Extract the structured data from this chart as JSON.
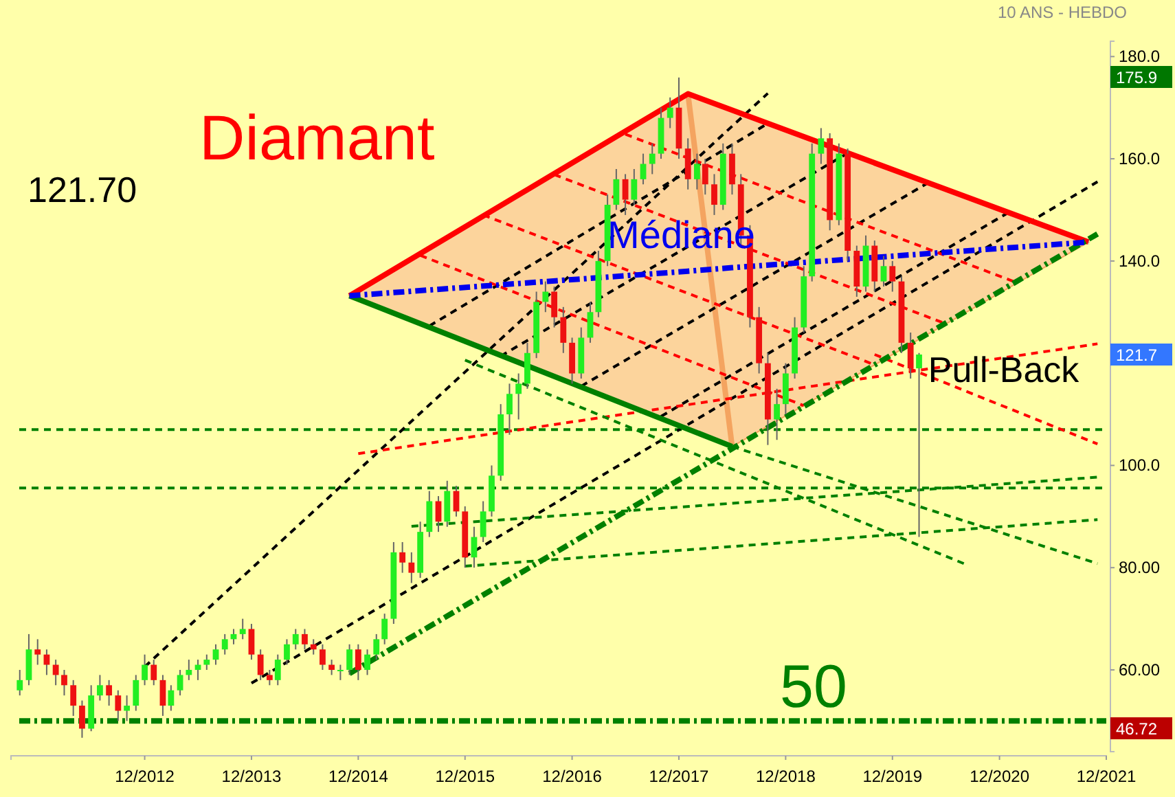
{
  "chart_data": {
    "type": "candlestick",
    "title": "Diamant",
    "subtitle": "10 ANS - HEBDO",
    "xlim": [
      "2011-09",
      "2021-12"
    ],
    "xticks": [
      {
        "value": "2012-12",
        "label": "12/2012"
      },
      {
        "value": "2013-12",
        "label": "12/2013"
      },
      {
        "value": "2014-12",
        "label": "12/2014"
      },
      {
        "value": "2015-12",
        "label": "12/2015"
      },
      {
        "value": "2016-12",
        "label": "12/2016"
      },
      {
        "value": "2017-12",
        "label": "12/2017"
      },
      {
        "value": "2018-12",
        "label": "12/2018"
      },
      {
        "value": "2019-12",
        "label": "12/2019"
      },
      {
        "value": "2020-12",
        "label": "12/2020"
      },
      {
        "value": "2021-12",
        "label": "12/2021"
      }
    ],
    "ylim": [
      44,
      183
    ],
    "yticks": [
      {
        "value": 60,
        "label": "60.00"
      },
      {
        "value": 80,
        "label": "80.00"
      },
      {
        "value": 100,
        "label": "100.0"
      },
      {
        "value": 140,
        "label": "140.0"
      },
      {
        "value": 160,
        "label": "160.0"
      },
      {
        "value": 180,
        "label": "180.0"
      }
    ],
    "grid": false,
    "ref_lines": [
      {
        "axis": "y",
        "value": 50,
        "label": "50",
        "color": "#008000",
        "line_style": "dashed"
      },
      {
        "axis": "y",
        "value": 107,
        "label": null,
        "color": "#008000",
        "line_style": "dotted"
      },
      {
        "axis": "y",
        "value": 95.6,
        "label": null,
        "color": "#008000",
        "line_style": "dotted"
      }
    ],
    "annotations": [
      "121.70",
      {
        "text": "Médiane",
        "x": "2017-04",
        "y": 142.5
      },
      {
        "text": "Pull-Back",
        "x": "2020-04",
        "y": 116.3
      },
      "175.9",
      "121.7",
      "46.72"
    ],
    "series": [
      {
        "type": "line",
        "color": "#0000ee",
        "line_style": "dashed",
        "x": [
          "2014-11",
          "2018-01",
          "2018-06",
          "2021-10"
        ],
        "values": [
          133.2,
          138,
          138.7,
          143.7
        ],
        "lower": [
          133.2,
          107.2,
          103.7,
          143.7
        ],
        "upper": [
          133.2,
          172.7,
          169.4,
          143.7
        ]
      },
      {
        "type": "line",
        "color": "#f4a460",
        "line_style": "solid",
        "x": [
          "2018-01",
          "2018-06"
        ],
        "values": [
          172.7,
          103.7
        ]
      },
      {
        "type": "line",
        "color": "#000000",
        "line_style": "dotted",
        "x": [
          "2012-12",
          "2018-10"
        ],
        "values": [
          60.6,
          172.8
        ]
      },
      {
        "type": "line",
        "color": "#000000",
        "line_style": "dotted",
        "x": [
          "2013-12",
          "2021-11"
        ],
        "values": [
          57.4,
          155.5
        ]
      },
      {
        "type": "line",
        "color": "#000000",
        "line_style": "dotted",
        "x": [
          "2015-08",
          "2018-10"
        ],
        "values": [
          127.3,
          166.9
        ]
      },
      {
        "type": "line",
        "color": "#000000",
        "line_style": "dotted",
        "x": [
          "2016-04",
          "2019-07"
        ],
        "values": [
          121.4,
          161.1
        ]
      },
      {
        "type": "line",
        "color": "#000000",
        "line_style": "dotted",
        "x": [
          "2017-01",
          "2020-04"
        ],
        "values": [
          115.5,
          155.3
        ]
      },
      {
        "type": "line",
        "color": "#000000",
        "line_style": "dotted",
        "x": [
          "2017-10",
          "2021-01"
        ],
        "values": [
          109.6,
          149.5
        ]
      },
      {
        "type": "line",
        "color": "#ff0000",
        "line_style": "dotted",
        "x": [
          "2015-07",
          "2019-02"
        ],
        "values": [
          141.1,
          111.7
        ]
      },
      {
        "type": "line",
        "color": "#ff0000",
        "line_style": "dotted",
        "x": [
          "2016-02",
          "2019-10"
        ],
        "values": [
          149,
          119.7
        ]
      },
      {
        "type": "line",
        "color": "#ff0000",
        "line_style": "dotted",
        "x": [
          "2016-10",
          "2020-06"
        ],
        "values": [
          156.9,
          127.7
        ]
      },
      {
        "type": "line",
        "color": "#ff0000",
        "line_style": "dotted",
        "x": [
          "2017-06",
          "2021-02"
        ],
        "values": [
          164.8,
          135.7
        ]
      },
      {
        "type": "line",
        "color": "#ff0000",
        "line_style": "dotted",
        "x": [
          "2014-12",
          "2021-11"
        ],
        "values": [
          102.3,
          123.8
        ]
      },
      {
        "type": "line",
        "color": "#ff0000",
        "line_style": "dotted",
        "x": [
          "2019-10",
          "2021-11"
        ],
        "values": [
          121.7,
          104.2
        ]
      },
      {
        "type": "line",
        "color": "#008000",
        "line_style": "dotted",
        "x": [
          "2015-12",
          "2020-08"
        ],
        "values": [
          120.6,
          80.8
        ]
      },
      {
        "type": "line",
        "color": "#008000",
        "line_style": "dotted",
        "x": [
          "2018-06",
          "2021-11"
        ],
        "values": [
          103.7,
          80.8
        ]
      },
      {
        "type": "line",
        "color": "#008000",
        "line_style": "dotted",
        "x": [
          "2015-06",
          "2021-11"
        ],
        "values": [
          88.1,
          97.7
        ]
      },
      {
        "type": "line",
        "color": "#008000",
        "line_style": "dotted",
        "x": [
          "2015-12",
          "2021-11"
        ],
        "values": [
          80.3,
          89.4
        ]
      },
      {
        "type": "line",
        "color": "#ff0000",
        "line_style": "solid",
        "x": [
          "2014-11",
          "2018-01",
          "2021-10"
        ],
        "values": [
          133.2,
          172.7,
          143.7
        ]
      },
      {
        "type": "line",
        "color": "#008000",
        "line_style": "solid",
        "x": [
          "2014-11",
          "2018-06"
        ],
        "values": [
          133.2,
          103.7
        ]
      },
      {
        "type": "line",
        "color": "#008000",
        "line_style": "dashed",
        "x": [
          "2014-11",
          "2021-11"
        ],
        "values": [
          59.3,
          145.3
        ]
      },
      {
        "x": [
          "2011-10",
          "2011-11",
          "2011-12",
          "2012-01",
          "2012-02",
          "2012-03",
          "2012-04",
          "2012-05",
          "2012-06",
          "2012-07",
          "2012-08",
          "2012-09",
          "2012-10",
          "2012-11",
          "2012-12",
          "2013-01",
          "2013-02",
          "2013-03",
          "2013-04",
          "2013-05",
          "2013-06",
          "2013-07",
          "2013-08",
          "2013-09",
          "2013-10",
          "2013-11",
          "2013-12",
          "2014-01",
          "2014-02",
          "2014-03",
          "2014-04",
          "2014-05",
          "2014-06",
          "2014-07",
          "2014-08",
          "2014-09",
          "2014-10",
          "2014-11",
          "2014-12",
          "2015-01",
          "2015-02",
          "2015-03",
          "2015-04",
          "2015-05",
          "2015-06",
          "2015-07",
          "2015-08",
          "2015-09",
          "2015-10",
          "2015-11",
          "2015-12",
          "2016-01",
          "2016-02",
          "2016-03",
          "2016-04",
          "2016-05",
          "2016-06",
          "2016-07",
          "2016-08",
          "2016-09",
          "2016-10",
          "2016-11",
          "2016-12",
          "2017-01",
          "2017-02",
          "2017-03",
          "2017-04",
          "2017-05",
          "2017-06",
          "2017-07",
          "2017-08",
          "2017-09",
          "2017-10",
          "2017-11",
          "2017-12",
          "2018-01",
          "2018-02",
          "2018-03",
          "2018-04",
          "2018-05",
          "2018-06",
          "2018-07",
          "2018-08",
          "2018-09",
          "2018-10",
          "2018-11",
          "2018-12",
          "2019-01",
          "2019-02",
          "2019-03",
          "2019-04",
          "2019-05",
          "2019-06",
          "2019-07",
          "2019-08",
          "2019-09",
          "2019-10",
          "2019-11",
          "2019-12",
          "2020-01",
          "2020-02",
          "2020-03"
        ],
        "ohlc": [
          [
            56,
            60,
            55,
            58
          ],
          [
            58,
            67,
            57,
            64
          ],
          [
            64,
            66,
            61,
            63
          ],
          [
            63,
            64,
            59,
            61
          ],
          [
            61,
            62,
            57,
            59
          ],
          [
            59,
            60,
            55,
            57
          ],
          [
            57,
            58,
            51,
            53
          ],
          [
            53,
            54,
            46.72,
            48.5
          ],
          [
            48.5,
            57,
            48,
            55
          ],
          [
            55,
            59,
            54,
            57
          ],
          [
            57,
            58,
            53,
            55
          ],
          [
            55,
            56,
            50,
            52
          ],
          [
            52,
            55,
            50,
            53
          ],
          [
            53,
            59,
            52,
            58
          ],
          [
            58,
            63,
            57,
            61
          ],
          [
            61,
            62,
            57,
            58
          ],
          [
            58,
            59,
            51,
            53
          ],
          [
            53,
            57,
            52,
            56
          ],
          [
            56,
            60,
            55,
            59
          ],
          [
            59,
            62,
            58,
            60
          ],
          [
            60,
            62,
            58,
            61
          ],
          [
            61,
            63,
            60,
            62
          ],
          [
            62,
            65,
            61,
            64
          ],
          [
            64,
            67,
            63,
            66
          ],
          [
            66,
            68,
            65,
            67
          ],
          [
            67,
            70,
            66,
            68
          ],
          [
            68,
            69,
            62,
            63
          ],
          [
            63,
            64,
            58,
            59
          ],
          [
            59,
            60,
            57,
            58
          ],
          [
            58,
            63,
            57,
            62
          ],
          [
            62,
            66,
            61,
            65
          ],
          [
            65,
            68,
            64,
            67
          ],
          [
            67,
            68,
            64,
            65
          ],
          [
            65,
            66,
            63,
            64
          ],
          [
            64,
            65,
            60,
            61
          ],
          [
            61,
            62,
            59,
            60
          ],
          [
            60,
            61,
            58,
            60
          ],
          [
            60,
            65,
            59,
            64
          ],
          [
            64,
            65,
            58,
            60
          ],
          [
            60,
            64,
            59,
            63
          ],
          [
            63,
            67,
            62,
            66
          ],
          [
            66,
            71,
            65,
            70
          ],
          [
            70,
            85,
            69,
            83
          ],
          [
            83,
            85,
            79,
            81
          ],
          [
            81,
            83,
            77,
            79
          ],
          [
            79,
            89,
            78,
            87
          ],
          [
            87,
            95,
            86,
            93
          ],
          [
            93,
            94,
            87,
            89
          ],
          [
            89,
            97,
            88,
            95
          ],
          [
            95,
            96,
            90,
            91
          ],
          [
            91,
            92,
            80,
            82
          ],
          [
            82,
            88,
            80,
            86
          ],
          [
            86,
            93,
            85,
            91
          ],
          [
            91,
            100,
            90,
            98
          ],
          [
            98,
            112,
            97,
            110
          ],
          [
            110,
            116,
            106,
            114
          ],
          [
            114,
            118,
            109,
            116
          ],
          [
            116,
            124,
            115,
            122
          ],
          [
            122,
            134,
            121,
            132
          ],
          [
            132,
            136,
            130,
            134
          ],
          [
            134,
            135,
            127,
            129
          ],
          [
            129,
            131,
            122,
            124
          ],
          [
            124,
            125,
            116,
            118
          ],
          [
            118,
            127,
            117,
            125
          ],
          [
            125,
            132,
            124,
            130
          ],
          [
            130,
            142,
            129,
            140
          ],
          [
            140,
            153,
            139,
            151
          ],
          [
            151,
            158,
            150,
            156
          ],
          [
            156,
            157,
            149,
            152
          ],
          [
            152,
            158,
            151,
            156
          ],
          [
            156,
            161,
            155,
            159
          ],
          [
            159,
            163,
            157,
            161
          ],
          [
            161,
            170,
            160,
            168
          ],
          [
            168,
            172,
            166,
            170
          ],
          [
            170,
            175.9,
            160,
            162
          ],
          [
            162,
            164,
            154,
            156
          ],
          [
            156,
            161,
            154,
            159
          ],
          [
            159,
            160,
            153,
            155
          ],
          [
            155,
            157,
            149,
            151
          ],
          [
            151,
            163,
            150,
            161
          ],
          [
            161,
            163,
            153,
            155
          ],
          [
            155,
            157,
            143,
            145
          ],
          [
            145,
            147,
            127,
            129
          ],
          [
            129,
            131,
            118,
            120
          ],
          [
            120,
            122,
            104,
            109
          ],
          [
            109,
            115,
            105,
            112
          ],
          [
            112,
            120,
            110,
            118
          ],
          [
            118,
            129,
            117,
            127
          ],
          [
            127,
            139,
            126,
            137
          ],
          [
            137,
            163,
            136,
            161
          ],
          [
            161,
            166,
            159,
            164
          ],
          [
            164,
            165,
            146,
            148
          ],
          [
            148,
            163,
            147,
            161
          ],
          [
            161,
            162,
            140,
            142
          ],
          [
            142,
            143,
            133,
            135
          ],
          [
            135,
            145,
            134,
            143
          ],
          [
            143,
            144,
            134,
            136
          ],
          [
            136,
            141,
            135,
            139
          ],
          [
            139,
            140,
            134,
            136
          ],
          [
            136,
            137,
            122,
            124
          ],
          [
            124,
            126,
            117,
            119
          ],
          [
            119,
            122,
            86,
            121.7
          ]
        ]
      }
    ]
  }
}
